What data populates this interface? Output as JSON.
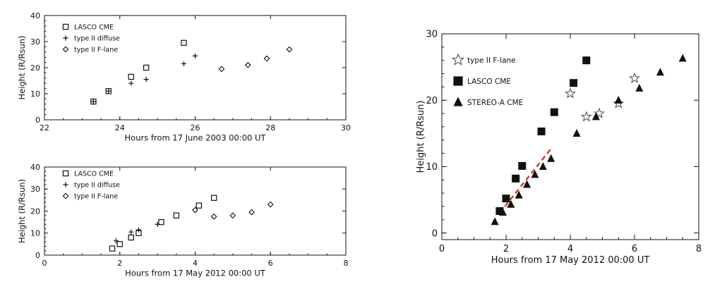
{
  "chart_data": [
    {
      "type": "scatter",
      "ylabel": "Height (R/Rsun)",
      "xlabel": "Hours from 17 June 2003 00:00 UT",
      "xlim": [
        22,
        30
      ],
      "ylim": [
        0,
        40
      ],
      "xticks": [
        "22",
        "24",
        "26",
        "28",
        "30"
      ],
      "yticks": [
        "0",
        "10",
        "20",
        "30",
        "40"
      ],
      "grid": false,
      "legend_position": "top-left",
      "series": [
        {
          "name": "LASCO CME",
          "marker": "square",
          "x": [
            23.3,
            23.7,
            24.3,
            24.7,
            25.7
          ],
          "y": [
            7,
            11,
            16.5,
            20,
            29.5
          ]
        },
        {
          "name": "type II diffuse",
          "marker": "plus",
          "x": [
            23.3,
            23.7,
            24.3,
            24.7,
            25.7,
            26.0
          ],
          "y": [
            7,
            11,
            14,
            15.5,
            21.5,
            24.5
          ]
        },
        {
          "name": "type II F-lane",
          "marker": "diamond",
          "x": [
            26.7,
            27.4,
            27.9,
            28.5
          ],
          "y": [
            19.5,
            21,
            23.5,
            27
          ]
        }
      ]
    },
    {
      "type": "scatter",
      "ylabel": "Height (R/Rsun)",
      "xlabel": "Hours from 17 May 2012 00:00 UT",
      "xlim": [
        0,
        8
      ],
      "ylim": [
        0,
        40
      ],
      "xticks": [
        "0",
        "2",
        "4",
        "6",
        "8"
      ],
      "yticks": [
        "0",
        "10",
        "20",
        "30",
        "40"
      ],
      "grid": false,
      "legend_position": "top-left",
      "series": [
        {
          "name": "LASCO CME",
          "marker": "square",
          "x": [
            1.8,
            2.0,
            2.3,
            2.5,
            3.1,
            3.5,
            4.1,
            4.5
          ],
          "y": [
            3,
            5,
            8,
            10,
            15,
            18,
            22.5,
            26
          ]
        },
        {
          "name": "type II diffuse",
          "marker": "plus",
          "x": [
            1.9,
            2.3,
            2.5,
            3.0
          ],
          "y": [
            6.5,
            10.5,
            11.5,
            14
          ]
        },
        {
          "name": "type II F-lane",
          "marker": "diamond",
          "x": [
            4.0,
            4.5,
            5.0,
            5.5,
            6.0
          ],
          "y": [
            20.5,
            17.5,
            18,
            19.5,
            23
          ]
        }
      ]
    },
    {
      "type": "scatter",
      "ylabel": "Height (R/Rsun)",
      "xlabel": "Hours from 17 May 2012 00:00 UT",
      "xlim": [
        0,
        8
      ],
      "ylim": [
        -1,
        30
      ],
      "xticks": [
        "0",
        "2",
        "4",
        "6",
        "8"
      ],
      "yticks": [
        "0",
        "10",
        "20",
        "30"
      ],
      "grid": false,
      "legend_position": "top-left",
      "series": [
        {
          "name": "type II F-lane",
          "marker": "star",
          "x": [
            4.0,
            4.5,
            4.9,
            5.5,
            6.0
          ],
          "y": [
            21,
            17.5,
            18,
            19.5,
            23.3
          ]
        },
        {
          "name": "LASCO CME",
          "marker": "filled-square",
          "x": [
            1.8,
            2.0,
            2.3,
            2.5,
            3.1,
            3.5,
            4.1,
            4.5
          ],
          "y": [
            3.3,
            5.2,
            8.2,
            10.1,
            15.3,
            18.2,
            22.6,
            26
          ]
        },
        {
          "name": "STEREO-A CME",
          "marker": "filled-triangle",
          "x": [
            1.65,
            1.9,
            2.15,
            2.4,
            2.65,
            2.9,
            3.15,
            3.4,
            4.2,
            4.8,
            5.5,
            6.15,
            6.8,
            7.5
          ],
          "y": [
            1.7,
            3.1,
            4.3,
            5.7,
            7.3,
            8.8,
            10,
            11.2,
            15,
            17.5,
            20,
            21.8,
            24.2,
            26.3
          ]
        }
      ],
      "annotations": [
        {
          "kind": "dashed-fit-line",
          "color": "#e03020",
          "x": [
            1.8,
            3.4
          ],
          "y": [
            3.0,
            12.7
          ]
        }
      ]
    }
  ]
}
